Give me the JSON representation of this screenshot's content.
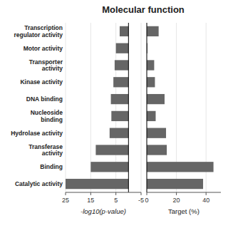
{
  "chart_data": [
    {
      "type": "bar",
      "orientation": "horizontal",
      "title": "Molecular function",
      "categories": [
        "Catalytic activity",
        "Binding",
        "Transferase\nactivity",
        "Hydrolase activity",
        "Nucleoside\nbinding",
        "DNA binding",
        "Kinase activity",
        "Transporter\nactivity",
        "Motor activity",
        "Transcription\nregulator activity"
      ],
      "values": [
        25.0,
        15.0,
        13.0,
        7.5,
        6.8,
        7.0,
        6.0,
        5.5,
        5.0,
        3.5
      ],
      "color": "#666666",
      "xlabel": "-log10(p-value)",
      "xlim": [
        25,
        -5
      ],
      "xticks": [
        25,
        15,
        5,
        -5
      ]
    },
    {
      "type": "bar",
      "orientation": "horizontal",
      "values": [
        38.0,
        45.0,
        13.5,
        13.0,
        6.0,
        12.0,
        5.5,
        5.0,
        0.5,
        8.0
      ],
      "color": "#666666",
      "xlabel": "Target (%)",
      "xlim": [
        0,
        50
      ],
      "xticks": [
        0,
        20,
        40
      ]
    }
  ]
}
